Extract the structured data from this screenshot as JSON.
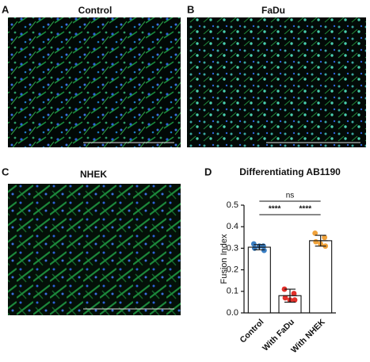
{
  "panels": [
    {
      "letter": "A",
      "title": "Control"
    },
    {
      "letter": "B",
      "title": "FaDu"
    },
    {
      "letter": "C",
      "title": "NHEK"
    }
  ],
  "chart_data": {
    "type": "bar",
    "letter": "D",
    "title": "Differentiating AB1190",
    "y_label": "Fusion Index",
    "categories": [
      "Control",
      "With FaDu",
      "With NHEK"
    ],
    "values": [
      0.305,
      0.08,
      0.335
    ],
    "errors": [
      0.012,
      0.03,
      0.025
    ],
    "points": [
      [
        0.32,
        0.31,
        0.3,
        0.29,
        0.31
      ],
      [
        0.11,
        0.09,
        0.07,
        0.06,
        0.06
      ],
      [
        0.37,
        0.35,
        0.33,
        0.31,
        0.32
      ]
    ],
    "colors": [
      "#3a7fc4",
      "#e2302a",
      "#f0a23a"
    ],
    "ylim": [
      0,
      0.5
    ],
    "yticks": [
      {
        "value": 0,
        "label": "0.0"
      },
      0.1,
      0.2,
      0.3,
      0.4,
      0.5
    ],
    "annotations": [
      "****",
      "****",
      "ns"
    ]
  }
}
